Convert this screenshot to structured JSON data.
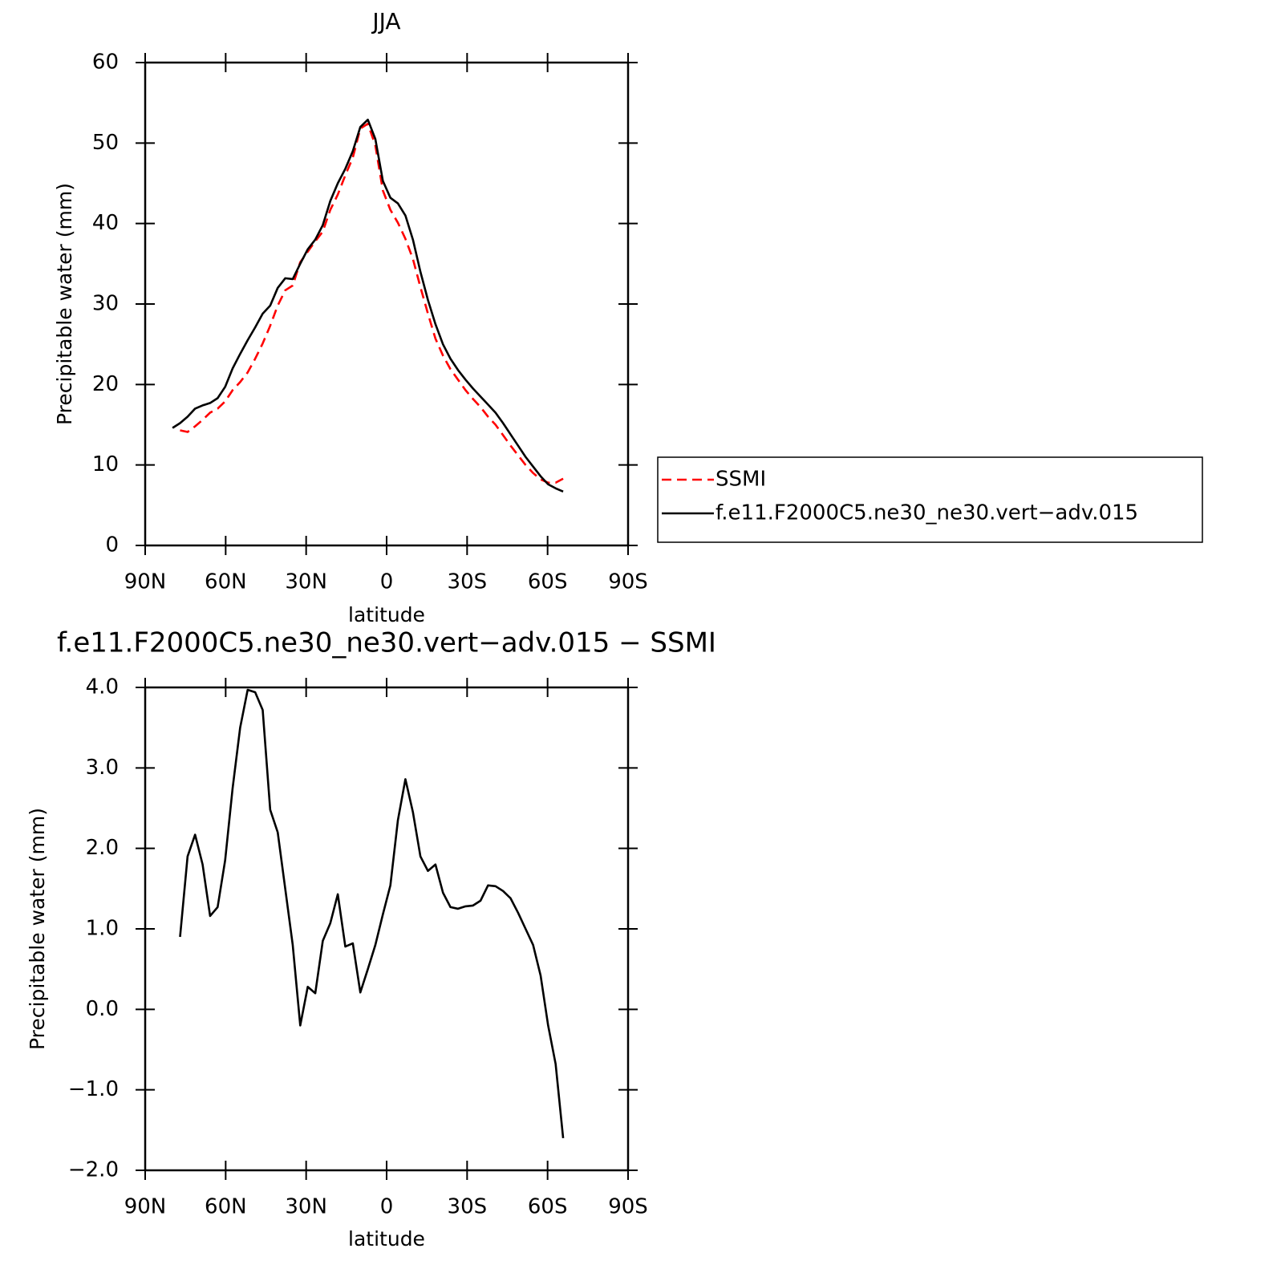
{
  "chart_data": [
    {
      "type": "line",
      "title": "JJA",
      "x_label": "latitude",
      "y_label": "Precipitable water (mm)",
      "x": [
        79.8,
        77.0,
        74.2,
        71.4,
        68.6,
        65.8,
        63.0,
        60.2,
        57.4,
        54.6,
        51.8,
        49.0,
        46.2,
        43.4,
        40.6,
        37.8,
        35.0,
        32.2,
        29.4,
        26.6,
        23.8,
        21.0,
        18.2,
        15.4,
        12.6,
        9.8,
        7.0,
        4.2,
        1.4,
        -1.4,
        -4.2,
        -7.0,
        -9.8,
        -12.6,
        -15.4,
        -18.2,
        -21.0,
        -23.8,
        -26.6,
        -29.4,
        -32.2,
        -35.0,
        -37.8,
        -40.6,
        -43.4,
        -46.2,
        -49.0,
        -51.8,
        -54.6,
        -57.4,
        -60.2,
        -63.0,
        -65.8
      ],
      "series": [
        {
          "name": "SSMI",
          "color": "#ff0000",
          "dashed": true,
          "values": [
            null,
            14.3,
            14.1,
            14.8,
            15.6,
            16.5,
            17.0,
            17.9,
            19.3,
            20.3,
            21.5,
            23.2,
            25.1,
            27.3,
            29.8,
            31.7,
            32.3,
            35.2,
            36.5,
            37.8,
            39.0,
            41.7,
            43.6,
            46.0,
            48.2,
            51.8,
            52.4,
            49.7,
            44.1,
            41.7,
            40.1,
            38.1,
            35.6,
            32.1,
            28.8,
            25.7,
            23.6,
            21.9,
            20.6,
            19.3,
            18.2,
            17.2,
            16.0,
            15.0,
            13.7,
            12.4,
            11.2,
            10.0,
            9.0,
            8.2,
            7.8,
            7.8,
            8.3
          ]
        },
        {
          "name": "f.e11.F2000C5.ne30_ne30.vert−adv.015",
          "color": "#000000",
          "dashed": false,
          "values": [
            14.6,
            15.2,
            16.0,
            17.0,
            17.4,
            17.7,
            18.3,
            19.7,
            22.0,
            23.8,
            25.5,
            27.1,
            28.8,
            29.8,
            32.0,
            33.2,
            33.1,
            35.0,
            36.8,
            38.0,
            39.8,
            42.8,
            45.0,
            46.8,
            49.0,
            52.0,
            52.9,
            50.5,
            45.3,
            43.2,
            42.5,
            41.0,
            38.0,
            34.0,
            30.5,
            27.5,
            25.0,
            23.2,
            21.8,
            20.6,
            19.5,
            18.5,
            17.5,
            16.5,
            15.2,
            13.8,
            12.4,
            11.0,
            9.8,
            8.6,
            7.6,
            7.1,
            6.7
          ]
        }
      ],
      "xlim": [
        90,
        -90
      ],
      "xticks": [
        {
          "value": 90,
          "label": "90N"
        },
        {
          "value": 60,
          "label": "60N"
        },
        {
          "value": 30,
          "label": "30N"
        },
        0,
        {
          "value": -30,
          "label": "30S"
        },
        {
          "value": -60,
          "label": "60S"
        },
        {
          "value": -90,
          "label": "90S"
        }
      ],
      "ylim": [
        0,
        60
      ],
      "yticks": [
        0,
        10,
        20,
        30,
        40,
        50,
        60
      ],
      "legend": "right"
    },
    {
      "type": "line",
      "title": "f.e11.F2000C5.ne30_ne30.vert−adv.015  −  SSMI",
      "x_label": "latitude",
      "y_label": "Precipitable water (mm)",
      "x": [
        79.8,
        77.0,
        74.2,
        71.4,
        68.6,
        65.8,
        63.0,
        60.2,
        57.4,
        54.6,
        51.8,
        49.0,
        46.2,
        43.4,
        40.6,
        37.8,
        35.0,
        32.2,
        29.4,
        26.6,
        23.8,
        21.0,
        18.2,
        15.4,
        12.6,
        9.8,
        7.0,
        4.2,
        1.4,
        -1.4,
        -4.2,
        -7.0,
        -9.8,
        -12.6,
        -15.4,
        -18.2,
        -21.0,
        -23.8,
        -26.6,
        -29.4,
        -32.2,
        -35.0,
        -37.8,
        -40.6,
        -43.4,
        -46.2,
        -49.0,
        -51.8,
        -54.6,
        -57.4,
        -60.2,
        -63.0,
        -65.8
      ],
      "series": [
        {
          "color": "#000000",
          "dashed": false,
          "values": [
            null,
            0.9,
            1.9,
            2.17,
            1.8,
            1.16,
            1.27,
            1.85,
            2.75,
            3.5,
            3.97,
            3.94,
            3.72,
            2.48,
            2.2,
            1.5,
            0.8,
            -0.2,
            0.28,
            0.2,
            0.85,
            1.07,
            1.43,
            0.78,
            0.82,
            0.21,
            0.5,
            0.8,
            1.18,
            1.54,
            2.35,
            2.86,
            2.45,
            1.9,
            1.72,
            1.8,
            1.45,
            1.27,
            1.25,
            1.28,
            1.29,
            1.35,
            1.54,
            1.53,
            1.47,
            1.38,
            1.2,
            1.0,
            0.8,
            0.42,
            -0.2,
            -0.68,
            -1.6
          ]
        }
      ],
      "xlim": [
        90,
        -90
      ],
      "xticks": [
        {
          "value": 90,
          "label": "90N"
        },
        {
          "value": 60,
          "label": "60N"
        },
        {
          "value": 30,
          "label": "30N"
        },
        0,
        {
          "value": -30,
          "label": "30S"
        },
        {
          "value": -60,
          "label": "60S"
        },
        {
          "value": -90,
          "label": "90S"
        }
      ],
      "ylim": [
        -2,
        4
      ],
      "yticks": [
        {
          "value": -2,
          "label": "−2.0"
        },
        {
          "value": -1,
          "label": "−1.0"
        },
        {
          "value": 0,
          "label": "0.0"
        },
        {
          "value": 1,
          "label": "1.0"
        },
        {
          "value": 2,
          "label": "2.0"
        },
        {
          "value": 3,
          "label": "3.0"
        },
        {
          "value": 4,
          "label": "4.0"
        }
      ]
    }
  ]
}
